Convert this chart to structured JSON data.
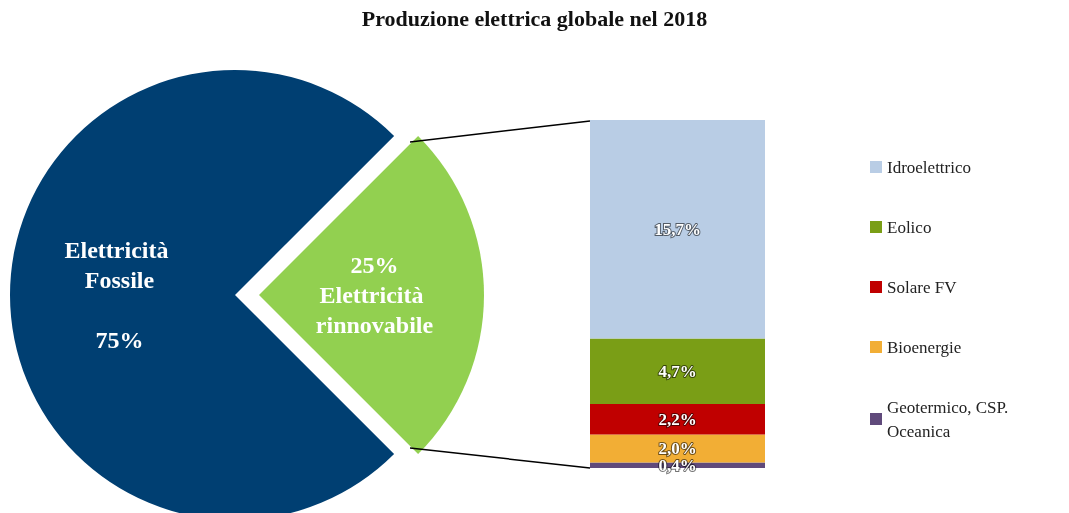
{
  "chart_data": [
    {
      "type": "pie",
      "title": "Produzione elettrica globale nel 2018",
      "categories": [
        "Elettricità Fossile",
        "Elettricità rinnovabile"
      ],
      "values": [
        75,
        25
      ],
      "value_labels": [
        "75%",
        "25%"
      ],
      "colors": [
        "#003f72",
        "#92d050"
      ],
      "legend": false
    },
    {
      "type": "bar",
      "stacked": true,
      "categories": [
        null
      ],
      "legend": "right",
      "series": [
        {
          "name": "Geotermico, CSP. Oceanica",
          "color": "#604a7b",
          "values": [
            0.4
          ],
          "value_labels": [
            "0,4%"
          ]
        },
        {
          "name": "Bioenergie",
          "color": "#f2ae35",
          "values": [
            2.0
          ],
          "value_labels": [
            "2,0%"
          ]
        },
        {
          "name": "Solare FV",
          "color": "#c00000",
          "values": [
            2.2
          ],
          "value_labels": [
            "2,2%"
          ]
        },
        {
          "name": "Eolico",
          "color": "#7a9e16",
          "values": [
            4.7
          ],
          "value_labels": [
            "4,7%"
          ]
        },
        {
          "name": "Idroelettrico",
          "color": "#b9cde5",
          "values": [
            15.7
          ],
          "value_labels": [
            "15,7%"
          ]
        }
      ]
    }
  ]
}
